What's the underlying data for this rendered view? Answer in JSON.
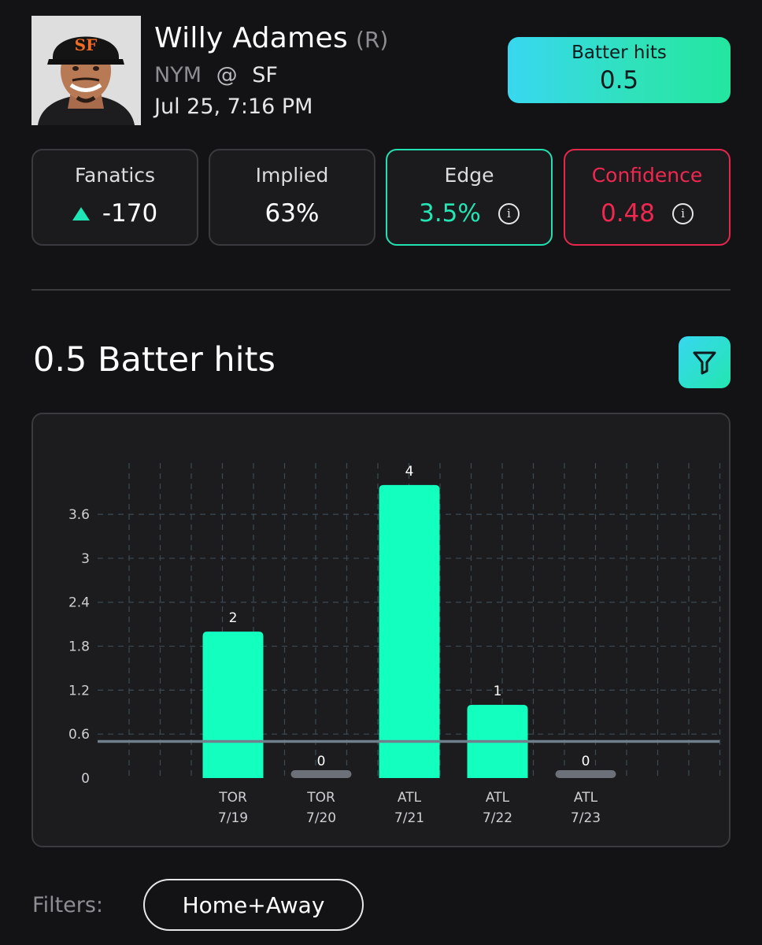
{
  "player": {
    "name": "Willy Adames",
    "handedness": "(R)",
    "away_team": "NYM",
    "at": "@",
    "home_team": "SF",
    "game_time": "Jul 25, 7:16 PM"
  },
  "market": {
    "label": "Batter hits",
    "line": "0.5"
  },
  "cards": {
    "fanatics": {
      "title": "Fanatics",
      "value": "-170"
    },
    "implied": {
      "title": "Implied",
      "value": "63%"
    },
    "edge": {
      "title": "Edge",
      "value": "3.5%",
      "info": "i"
    },
    "confidence": {
      "title": "Confidence",
      "value": "0.48",
      "info": "i"
    }
  },
  "section_title": "0.5 Batter hits",
  "filters": {
    "label": "Filters:",
    "chip": "Home+Away"
  },
  "colors": {
    "accent": "#1effc0",
    "hit_bar": "#13ffc0",
    "zero_bar": "#6b7079",
    "line": "#6f808b",
    "negative": "#f0284f",
    "background": "#131315"
  },
  "chart_data": {
    "type": "bar",
    "categories": [
      {
        "team": "TOR",
        "date": "7/19"
      },
      {
        "team": "TOR",
        "date": "7/20"
      },
      {
        "team": "ATL",
        "date": "7/21"
      },
      {
        "team": "ATL",
        "date": "7/22"
      },
      {
        "team": "ATL",
        "date": "7/23"
      }
    ],
    "values": [
      2,
      0,
      4,
      1,
      0
    ],
    "yticks": [
      "0",
      "0.6",
      "1.2",
      "1.8",
      "2.4",
      "3",
      "3.6"
    ],
    "ylim": [
      0,
      4.3
    ],
    "threshold": 0.5,
    "grid": true
  }
}
